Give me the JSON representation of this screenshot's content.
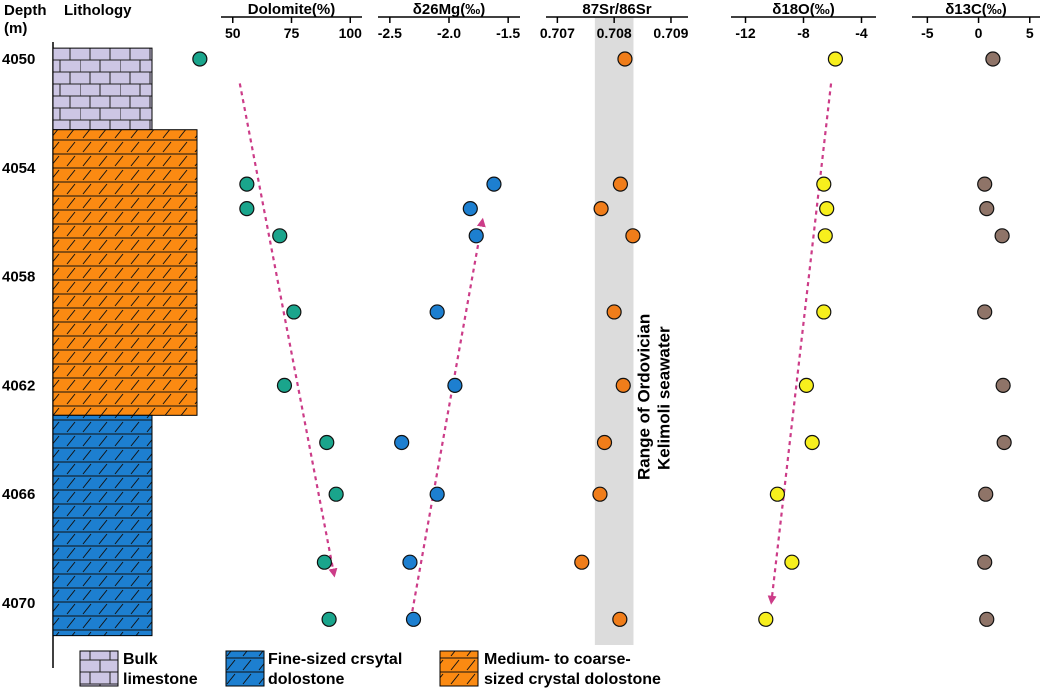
{
  "header": {
    "depth_label": "Depth",
    "depth_unit": "(m)",
    "lithology_label": "Lithology"
  },
  "colors": {
    "limestone": "#cdc6e4",
    "fine_dolostone": "#1d7fd0",
    "coarse_dolostone": "#fb8a12",
    "dolomite_pts": "#1aa58c",
    "mg_pts": "#1d7fd0",
    "sr_pts": "#f07d1a",
    "o_pts": "#f7ef1d",
    "c_pts": "#8f7468",
    "trend": "#cc3c88",
    "sr_band": "#dcdcdc"
  },
  "depth_axis": {
    "ticks": [
      4050,
      4054,
      4058,
      4062,
      4066,
      4070
    ],
    "tick_labels": [
      "4050",
      "4054",
      "4058",
      "4062",
      "4066",
      "4070"
    ],
    "range": [
      4050,
      4072
    ]
  },
  "lithology_column": [
    {
      "type": "limestone",
      "top": 4049.6,
      "bottom": 4052.6
    },
    {
      "type": "coarse_dolostone",
      "top": 4052.6,
      "bottom": 4063.1
    },
    {
      "type": "fine_dolostone",
      "top": 4063.1,
      "bottom": 4071.2
    }
  ],
  "legend": [
    {
      "type": "limestone",
      "line1": "Bulk",
      "line2": "limestone"
    },
    {
      "type": "fine_dolostone",
      "line1": "Fine-sized crsytal",
      "line2": "dolostone"
    },
    {
      "type": "coarse_dolostone",
      "line1": "Medium- to coarse-",
      "line2": "sized crystal dolostone"
    }
  ],
  "band_label": {
    "line1": "Range of Ordovician",
    "line2": "Kelimoli seawater"
  },
  "chart_data": [
    {
      "type": "scatter",
      "title": "Dolomite(%)",
      "xlim": [
        45,
        105
      ],
      "xticks": [
        50,
        75,
        100
      ],
      "xtick_labels": [
        "50",
        "75",
        "100"
      ],
      "color_key": "dolomite_pts",
      "points": [
        {
          "x": 36,
          "depth": 4050.0
        },
        {
          "x": 56,
          "depth": 4054.6
        },
        {
          "x": 56,
          "depth": 4055.5
        },
        {
          "x": 70,
          "depth": 4056.5
        },
        {
          "x": 76,
          "depth": 4059.3
        },
        {
          "x": 72,
          "depth": 4062.0
        },
        {
          "x": 90,
          "depth": 4064.1
        },
        {
          "x": 94,
          "depth": 4066.0
        },
        {
          "x": 89,
          "depth": 4068.5
        },
        {
          "x": 91,
          "depth": 4070.6
        }
      ],
      "trend": {
        "from": [
          53,
          4050.9
        ],
        "to": [
          93,
          4068.9
        ]
      }
    },
    {
      "type": "scatter",
      "title": "δ26Mg(‰)",
      "title_sup": "26",
      "xlim": [
        -2.6,
        -1.4
      ],
      "xticks": [
        -2.5,
        -2.0,
        -1.5
      ],
      "xtick_labels": [
        "-2.5",
        "-2.0",
        "-1.5"
      ],
      "color_key": "mg_pts",
      "points": [
        {
          "x": -1.62,
          "depth": 4054.6
        },
        {
          "x": -1.82,
          "depth": 4055.5
        },
        {
          "x": -1.77,
          "depth": 4056.5
        },
        {
          "x": -2.1,
          "depth": 4059.3
        },
        {
          "x": -1.95,
          "depth": 4062.0
        },
        {
          "x": -2.4,
          "depth": 4064.1
        },
        {
          "x": -2.1,
          "depth": 4066.0
        },
        {
          "x": -2.33,
          "depth": 4068.5
        },
        {
          "x": -2.3,
          "depth": 4070.6
        }
      ],
      "trend": {
        "from": [
          -2.31,
          4070.3
        ],
        "to": [
          -1.72,
          4056.0
        ]
      }
    },
    {
      "type": "scatter",
      "title": "87Sr/86Sr",
      "xlim": [
        0.7068,
        0.7093
      ],
      "xticks": [
        0.707,
        0.708,
        0.709
      ],
      "xtick_labels": [
        "0.707",
        "0.708",
        "0.709"
      ],
      "color_key": "sr_pts",
      "band": [
        0.70766,
        0.70834
      ],
      "points": [
        {
          "x": 0.70819,
          "depth": 4050.0
        },
        {
          "x": 0.70811,
          "depth": 4054.6
        },
        {
          "x": 0.70777,
          "depth": 4055.5
        },
        {
          "x": 0.70833,
          "depth": 4056.5
        },
        {
          "x": 0.708,
          "depth": 4059.3
        },
        {
          "x": 0.70816,
          "depth": 4062.0
        },
        {
          "x": 0.70783,
          "depth": 4064.1
        },
        {
          "x": 0.70775,
          "depth": 4066.0
        },
        {
          "x": 0.70743,
          "depth": 4068.5
        },
        {
          "x": 0.7081,
          "depth": 4070.6
        }
      ]
    },
    {
      "type": "scatter",
      "title": "δ18O(‰)",
      "title_sup": "18",
      "xlim": [
        -13,
        -3
      ],
      "xticks": [
        -12,
        -8,
        -4
      ],
      "xtick_labels": [
        "-12",
        "-8",
        "-4"
      ],
      "color_key": "o_pts",
      "points": [
        {
          "x": -5.8,
          "depth": 4050.0
        },
        {
          "x": -6.6,
          "depth": 4054.6
        },
        {
          "x": -6.4,
          "depth": 4055.5
        },
        {
          "x": -6.5,
          "depth": 4056.5
        },
        {
          "x": -6.6,
          "depth": 4059.3
        },
        {
          "x": -7.8,
          "depth": 4062.0
        },
        {
          "x": -7.4,
          "depth": 4064.1
        },
        {
          "x": -9.8,
          "depth": 4066.0
        },
        {
          "x": -8.8,
          "depth": 4068.5
        },
        {
          "x": -10.6,
          "depth": 4070.6
        }
      ],
      "trend": {
        "from": [
          -6.1,
          4050.9
        ],
        "to": [
          -10.2,
          4069.9
        ]
      }
    },
    {
      "type": "scatter",
      "title": "δ13C(‰)",
      "title_sup": "13",
      "xlim": [
        -6.5,
        6
      ],
      "xticks": [
        -5,
        0,
        5
      ],
      "xtick_labels": [
        "-5",
        "0",
        "5"
      ],
      "color_key": "c_pts",
      "points": [
        {
          "x": 1.4,
          "depth": 4050.0
        },
        {
          "x": 0.6,
          "depth": 4054.6
        },
        {
          "x": 0.8,
          "depth": 4055.5
        },
        {
          "x": 2.3,
          "depth": 4056.5
        },
        {
          "x": 0.6,
          "depth": 4059.3
        },
        {
          "x": 2.4,
          "depth": 4062.0
        },
        {
          "x": 2.5,
          "depth": 4064.1
        },
        {
          "x": 0.7,
          "depth": 4066.0
        },
        {
          "x": 0.6,
          "depth": 4068.5
        },
        {
          "x": 0.8,
          "depth": 4070.6
        }
      ]
    }
  ]
}
